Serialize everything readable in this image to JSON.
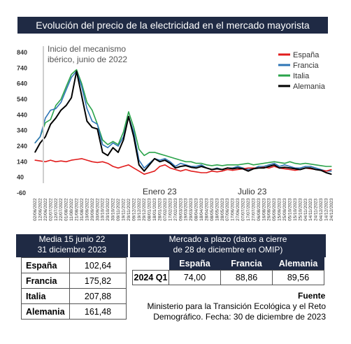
{
  "title": "Evolución del precio de la electricidad en el mercado mayorista",
  "chart_data": {
    "type": "line",
    "yticks": [
      "840",
      "740",
      "640",
      "540",
      "440",
      "340",
      "240",
      "140",
      "40",
      "-60"
    ],
    "ylim": [
      -60,
      840
    ],
    "annotations": {
      "mechanism": [
        "Inicio del mecanismo",
        "ibérico, junio de 2022"
      ],
      "enero": "Enero 23",
      "julio": "Julio 23"
    },
    "xtick_labels": [
      "02/06/2022",
      "12/06/2022",
      "22/06/2022",
      "02/07/2022",
      "12/07/2022",
      "22/07/2022",
      "01/08/2022",
      "11/08/2022",
      "21/08/2022",
      "31/08/2022",
      "10/09/2022",
      "20/09/2022",
      "30/09/2022",
      "10/10/2022",
      "20/10/2022",
      "30/10/2022",
      "09/11/2022",
      "19/11/2022",
      "29/11/2022",
      "09/12/2022",
      "19/12/2022",
      "29/12/2022",
      "08/01/2023",
      "18/01/2023",
      "28/01/2023",
      "07/02/2023",
      "17/02/2023",
      "27/02/2023",
      "09/03/2023",
      "19/03/2023",
      "29/03/2023",
      "08/04/2023",
      "18/04/2023",
      "28/04/2023",
      "08/05/2023",
      "18/05/2023",
      "28/05/2023",
      "07/06/2023",
      "17/06/2023",
      "27/06/2023",
      "07/07/2023",
      "17/07/2023",
      "27/07/2023",
      "06/08/2023",
      "16/08/2023",
      "26/08/2023",
      "05/09/2023",
      "15/09/2023",
      "25/09/2023",
      "05/10/2023",
      "15/10/2023",
      "25/10/2023",
      "04/11/2023",
      "14/11/2023",
      "24/11/2023",
      "04/12/2023",
      "14/12/2023",
      "24/12/2023"
    ],
    "series": [
      {
        "name": "España",
        "color": "#e11d1d",
        "values": [
          150,
          145,
          140,
          150,
          140,
          145,
          140,
          150,
          155,
          160,
          150,
          140,
          135,
          140,
          130,
          110,
          100,
          110,
          120,
          100,
          80,
          60,
          70,
          80,
          110,
          120,
          100,
          90,
          80,
          90,
          80,
          75,
          70,
          70,
          80,
          75,
          80,
          90,
          85,
          90,
          95,
          100,
          100,
          100,
          105,
          100,
          110,
          100,
          95,
          90,
          85,
          90,
          100,
          95,
          90,
          85,
          80,
          90
        ]
      },
      {
        "name": "Francia",
        "color": "#2e75b6",
        "values": [
          260,
          300,
          420,
          470,
          480,
          520,
          600,
          680,
          720,
          620,
          480,
          400,
          380,
          250,
          230,
          260,
          240,
          300,
          430,
          330,
          150,
          100,
          130,
          160,
          150,
          160,
          140,
          110,
          130,
          120,
          110,
          110,
          120,
          100,
          90,
          100,
          90,
          100,
          100,
          110,
          100,
          90,
          95,
          110,
          110,
          120,
          130,
          110,
          120,
          110,
          100,
          100,
          110,
          110,
          100,
          90,
          80,
          80
        ]
      },
      {
        "name": "Italia",
        "color": "#2aa34a",
        "values": [
          260,
          300,
          390,
          410,
          500,
          540,
          620,
          700,
          730,
          640,
          520,
          470,
          380,
          280,
          250,
          270,
          250,
          330,
          460,
          360,
          220,
          180,
          200,
          200,
          190,
          180,
          170,
          160,
          150,
          140,
          140,
          130,
          130,
          120,
          115,
          120,
          115,
          120,
          120,
          120,
          125,
          130,
          120,
          125,
          130,
          135,
          140,
          135,
          130,
          140,
          130,
          125,
          130,
          125,
          120,
          115,
          110,
          110
        ]
      },
      {
        "name": "Alemania",
        "color": "#000000",
        "values": [
          200,
          260,
          300,
          380,
          420,
          470,
          500,
          550,
          720,
          560,
          400,
          360,
          350,
          200,
          180,
          230,
          200,
          280,
          430,
          300,
          120,
          80,
          120,
          160,
          140,
          150,
          130,
          100,
          110,
          115,
          105,
          100,
          110,
          100,
          90,
          95,
          90,
          100,
          95,
          100,
          95,
          80,
          95,
          100,
          100,
          110,
          120,
          100,
          105,
          100,
          95,
          90,
          100,
          100,
          90,
          85,
          70,
          60
        ]
      }
    ]
  },
  "table1": {
    "header": [
      "Media 15 junio 22",
      "31 diciembre 2023"
    ],
    "rows": [
      {
        "country": "España",
        "value": "102,64"
      },
      {
        "country": "Francia",
        "value": "175,82"
      },
      {
        "country": "Italia",
        "value": "207,88"
      },
      {
        "country": "Alemania",
        "value": "161,48"
      }
    ]
  },
  "table2": {
    "header": [
      "Mercado a plazo (datos a cierre",
      "de 28 de diciembre en OMIP)"
    ],
    "columns": [
      "España",
      "Francia",
      "Alemania"
    ],
    "row_label": "2024 Q1",
    "values": [
      "74,00",
      "88,86",
      "89,56"
    ]
  },
  "source": {
    "title": "Fuente",
    "text": "Ministerio para la Transición Ecológica y el Reto Demográfico. Fecha: 30 de diciembre de 2023"
  }
}
